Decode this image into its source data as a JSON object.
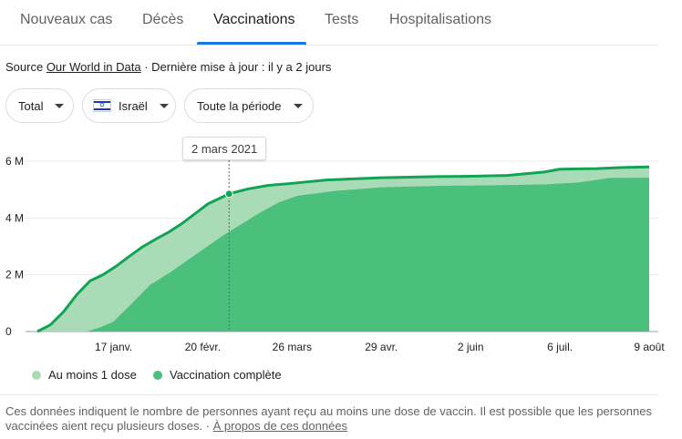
{
  "tabs": [
    {
      "label": "Nouveaux cas"
    },
    {
      "label": "Décès"
    },
    {
      "label": "Vaccinations"
    },
    {
      "label": "Tests"
    },
    {
      "label": "Hospitalisations"
    }
  ],
  "active_tab": "Vaccinations",
  "source": {
    "prefix": "Source ",
    "link": "Our World in Data",
    "suffix": " · Dernière mise à jour : il y a 2 jours"
  },
  "filters": {
    "metric": "Total",
    "country": "Israël",
    "period": "Toute la période"
  },
  "tooltip": "2 mars 2021",
  "legend": {
    "one_dose": "Au moins 1 dose",
    "full": "Vaccination complète"
  },
  "colors": {
    "one_dose": "#a8dbb6",
    "full": "#4bbf7c",
    "line": "#12a454",
    "accent": "#1a73e8"
  },
  "note": {
    "text": "Ces données indiquent le nombre de personnes ayant reçu au moins une dose de vaccin. Il est possible que les personnes vaccinées aient reçu plusieurs doses.",
    "separator": " · ",
    "link": "À propos de ces données"
  },
  "chart_data": {
    "type": "area",
    "y_ticks": [
      "6 M",
      "4 M",
      "2 M",
      "0"
    ],
    "x_ticks": [
      "17 janv.",
      "20 févr.",
      "26 mars",
      "29 avr.",
      "2 juin",
      "6 juil.",
      "9 août"
    ],
    "ylim": [
      0,
      6000000
    ],
    "grid": true,
    "legend_position": "bottom",
    "series": [
      {
        "name": "Au moins 1 dose",
        "x": [
          "2020-12-19",
          "2020-12-24",
          "2020-12-29",
          "2021-01-03",
          "2021-01-08",
          "2021-01-13",
          "2021-01-18",
          "2021-01-23",
          "2021-01-28",
          "2021-02-02",
          "2021-02-07",
          "2021-02-12",
          "2021-02-17",
          "2021-02-22",
          "2021-03-02",
          "2021-03-09",
          "2021-03-17",
          "2021-03-26",
          "2021-04-08",
          "2021-04-29",
          "2021-05-20",
          "2021-06-02",
          "2021-06-16",
          "2021-06-30",
          "2021-07-06",
          "2021-07-20",
          "2021-07-30",
          "2021-08-09"
        ],
        "values": [
          0,
          240000,
          700000,
          1300000,
          1780000,
          2000000,
          2300000,
          2650000,
          2980000,
          3250000,
          3500000,
          3800000,
          4150000,
          4500000,
          4850000,
          5020000,
          5150000,
          5220000,
          5340000,
          5420000,
          5460000,
          5470000,
          5500000,
          5620000,
          5720000,
          5740000,
          5780000,
          5800000
        ]
      },
      {
        "name": "Vaccination complète",
        "x": [
          "2021-01-07",
          "2021-01-12",
          "2021-01-17",
          "2021-01-23",
          "2021-01-31",
          "2021-02-07",
          "2021-02-14",
          "2021-02-21",
          "2021-02-28",
          "2021-03-07",
          "2021-03-14",
          "2021-03-21",
          "2021-03-28",
          "2021-04-11",
          "2021-04-29",
          "2021-05-20",
          "2021-06-09",
          "2021-06-30",
          "2021-07-13",
          "2021-07-25",
          "2021-08-09"
        ],
        "values": [
          0,
          150000,
          350000,
          900000,
          1650000,
          2050000,
          2500000,
          2950000,
          3400000,
          3800000,
          4200000,
          4550000,
          4780000,
          4950000,
          5080000,
          5130000,
          5150000,
          5180000,
          5250000,
          5410000,
          5420000
        ]
      }
    ]
  }
}
